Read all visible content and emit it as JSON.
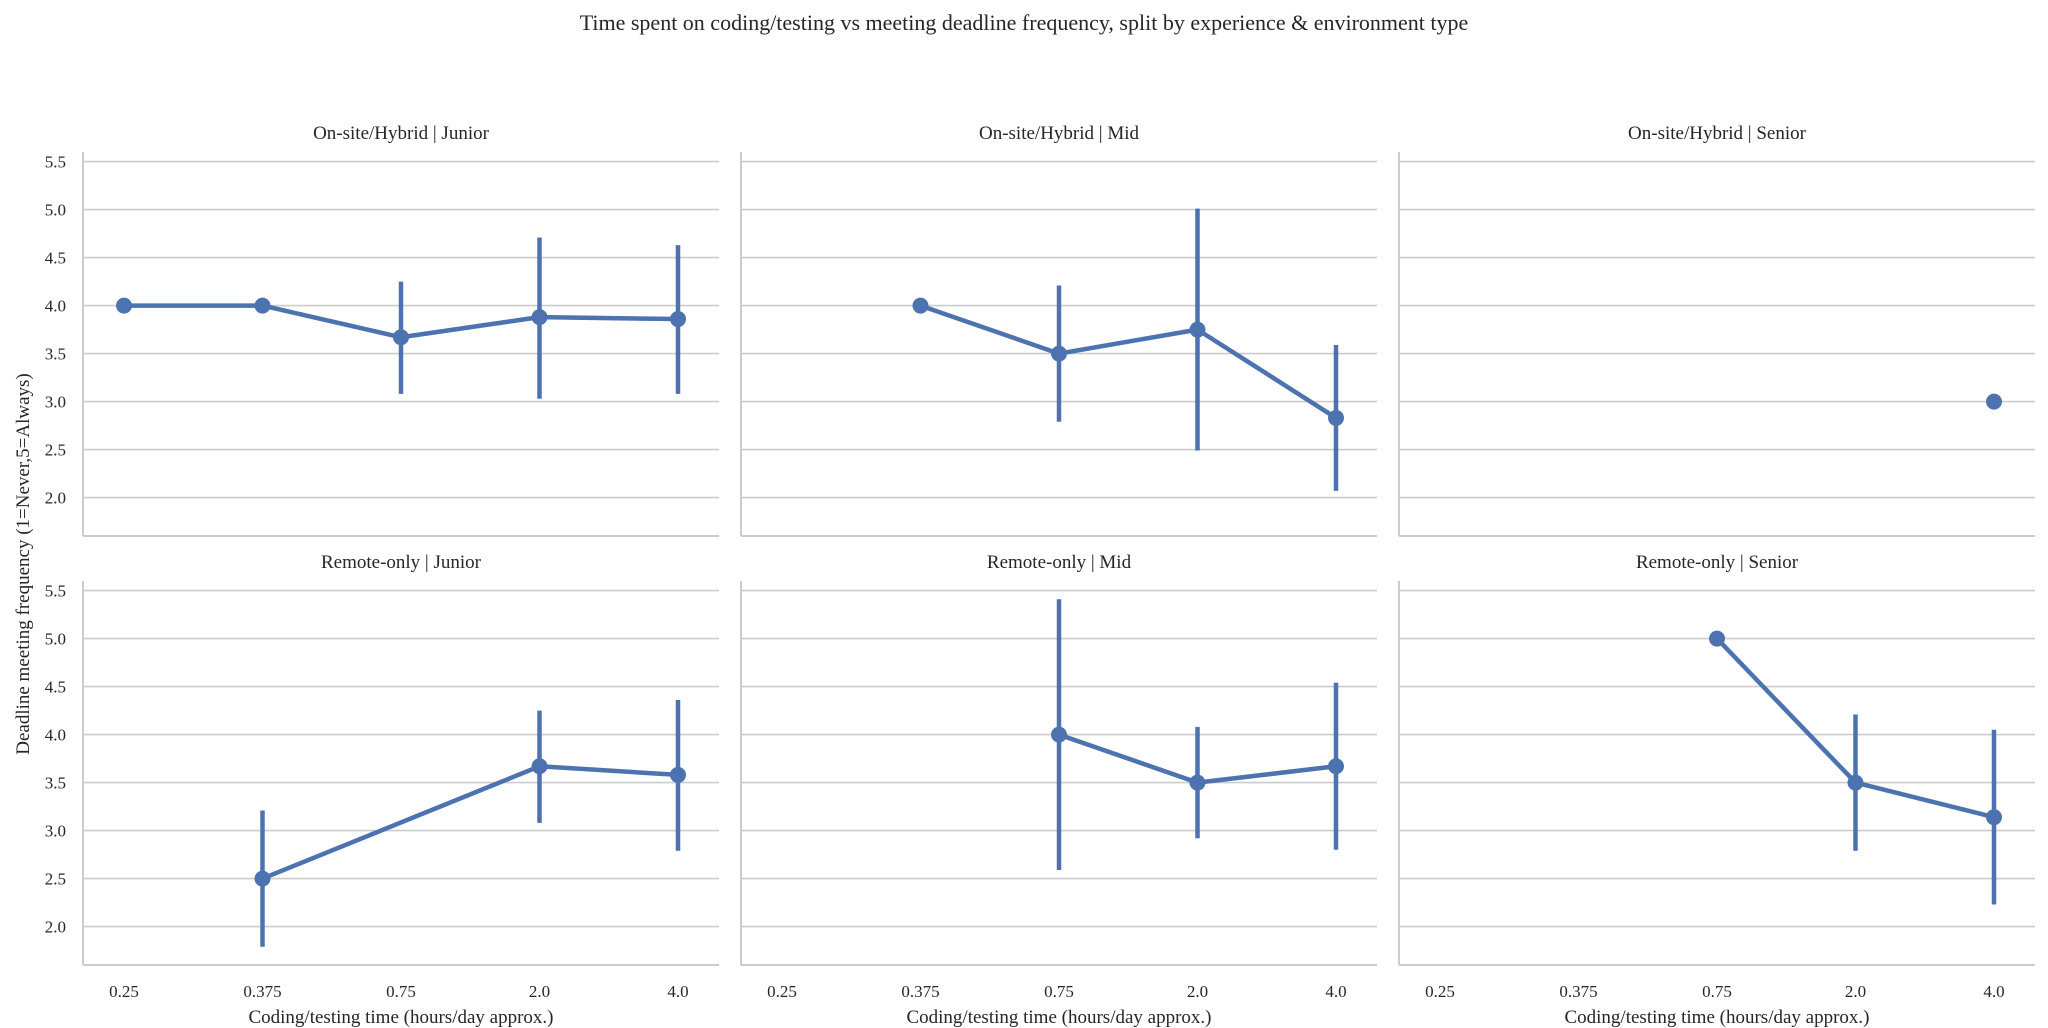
{
  "chart_data": {
    "type": "line",
    "title": "Time spent on coding/testing vs meeting deadline frequency, split by experience & environment type",
    "xlabel": "Coding/testing time (hours/day approx.)",
    "ylabel": "Deadline meeting frequency (1=Never,5=Always)",
    "categories": [
      "0.25",
      "0.375",
      "0.75",
      "2.0",
      "4.0"
    ],
    "y_ticks": [
      "2.0",
      "2.5",
      "3.0",
      "3.5",
      "4.0",
      "4.5",
      "5.0",
      "5.5"
    ],
    "ylim": [
      1.6,
      5.6
    ],
    "grid": "horizontal",
    "color": "#4c72b0",
    "error_bars": "vertical interval around each point",
    "panels": [
      {
        "title": "On-site/Hybrid | Junior",
        "points": [
          {
            "x": "0.25",
            "y": 4.0,
            "low": null,
            "high": null
          },
          {
            "x": "0.375",
            "y": 4.0,
            "low": null,
            "high": null
          },
          {
            "x": "0.75",
            "y": 3.67,
            "low": 3.08,
            "high": 4.25
          },
          {
            "x": "2.0",
            "y": 3.88,
            "low": 3.03,
            "high": 4.71
          },
          {
            "x": "4.0",
            "y": 3.86,
            "low": 3.08,
            "high": 4.63
          }
        ]
      },
      {
        "title": "On-site/Hybrid | Mid",
        "points": [
          {
            "x": "0.375",
            "y": 4.0,
            "low": null,
            "high": null
          },
          {
            "x": "0.75",
            "y": 3.5,
            "low": 2.79,
            "high": 4.21
          },
          {
            "x": "2.0",
            "y": 3.75,
            "low": 2.49,
            "high": 5.01
          },
          {
            "x": "4.0",
            "y": 2.83,
            "low": 2.07,
            "high": 3.59
          }
        ]
      },
      {
        "title": "On-site/Hybrid | Senior",
        "points": [
          {
            "x": "4.0",
            "y": 3.0,
            "low": null,
            "high": null
          }
        ]
      },
      {
        "title": "Remote-only | Junior",
        "points": [
          {
            "x": "0.375",
            "y": 2.5,
            "low": 1.79,
            "high": 3.21
          },
          {
            "x": "2.0",
            "y": 3.67,
            "low": 3.08,
            "high": 4.25
          },
          {
            "x": "4.0",
            "y": 3.58,
            "low": 2.79,
            "high": 4.36
          }
        ]
      },
      {
        "title": "Remote-only | Mid",
        "points": [
          {
            "x": "0.75",
            "y": 4.0,
            "low": 2.59,
            "high": 5.41
          },
          {
            "x": "2.0",
            "y": 3.5,
            "low": 2.92,
            "high": 4.08
          },
          {
            "x": "4.0",
            "y": 3.67,
            "low": 2.8,
            "high": 4.54
          }
        ]
      },
      {
        "title": "Remote-only | Senior",
        "points": [
          {
            "x": "0.75",
            "y": 5.0,
            "low": null,
            "high": null
          },
          {
            "x": "2.0",
            "y": 3.5,
            "low": 2.79,
            "high": 4.21
          },
          {
            "x": "4.0",
            "y": 3.14,
            "low": 2.23,
            "high": 4.05
          }
        ]
      }
    ]
  }
}
